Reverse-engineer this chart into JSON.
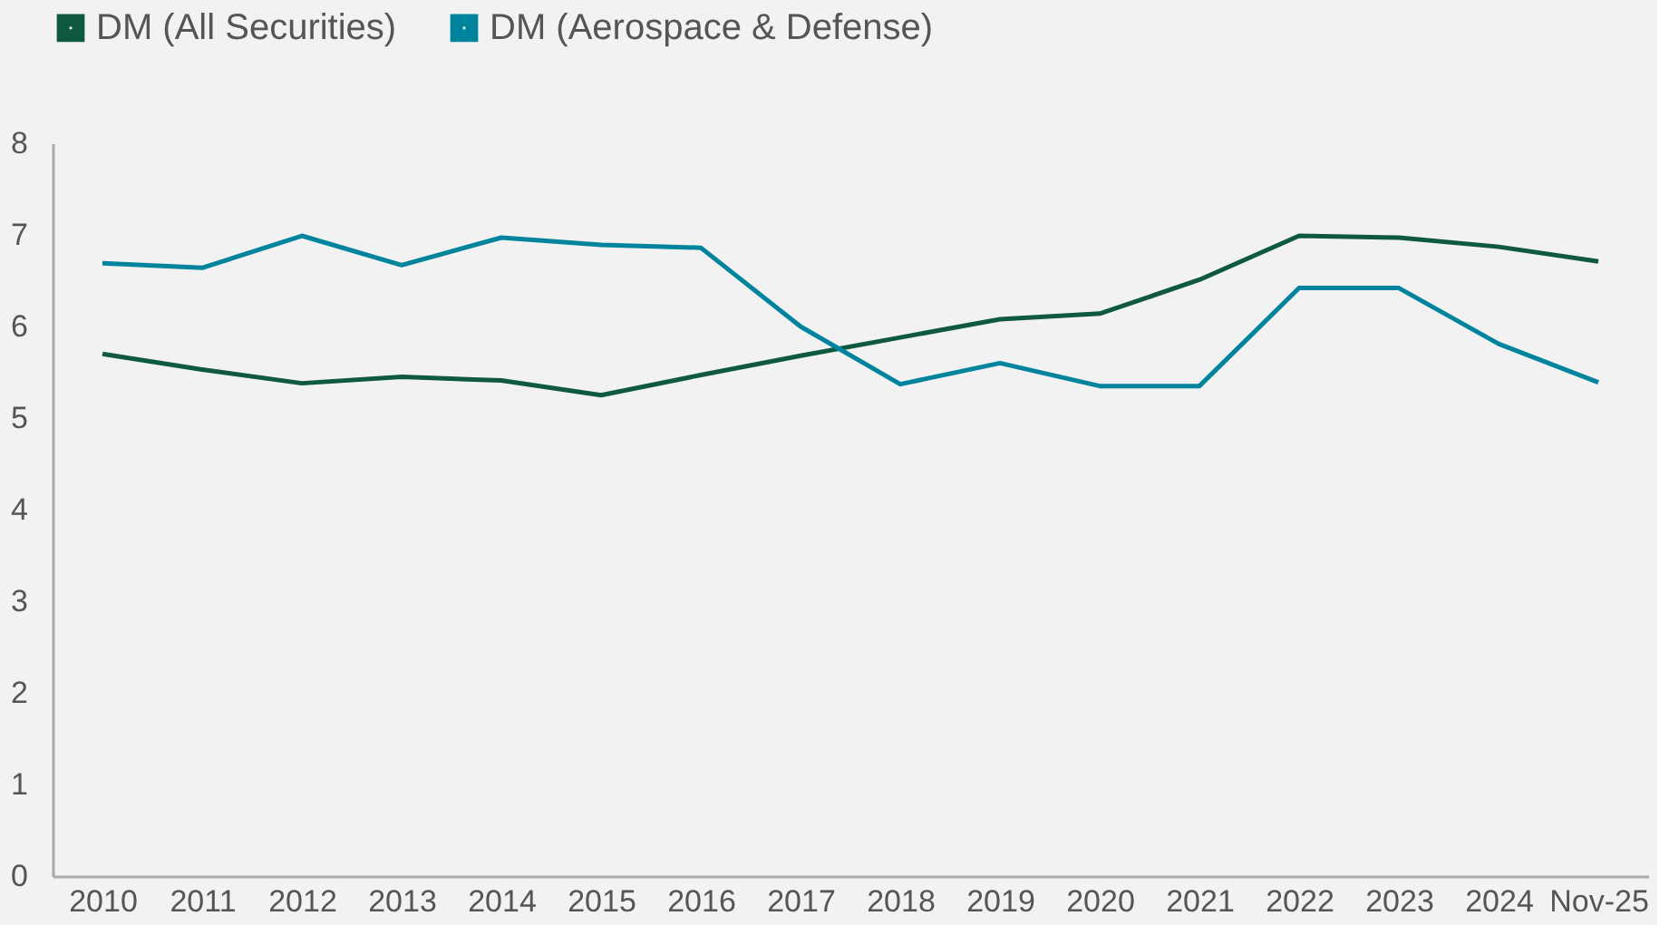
{
  "chart_data": {
    "type": "line",
    "categories": [
      "2010",
      "2011",
      "2012",
      "2013",
      "2014",
      "2015",
      "2016",
      "2017",
      "2018",
      "2019",
      "2020",
      "2021",
      "2022",
      "2023",
      "2024",
      "Nov-25"
    ],
    "series": [
      {
        "name": "DM (All Securities)",
        "color": "#0f5a3e",
        "values": [
          5.7,
          5.53,
          5.38,
          5.45,
          5.41,
          5.25,
          5.47,
          5.68,
          5.88,
          6.08,
          6.14,
          6.51,
          6.99,
          6.97,
          6.87,
          6.71
        ]
      },
      {
        "name": "DM (Aerospace & Defense)",
        "color": "#00849e",
        "values": [
          6.69,
          6.64,
          6.99,
          6.67,
          6.97,
          6.89,
          6.86,
          6.0,
          5.37,
          5.6,
          5.35,
          5.35,
          6.42,
          6.42,
          5.81,
          5.39
        ]
      }
    ],
    "ylim": [
      0,
      8
    ],
    "yticks": [
      0,
      1,
      2,
      3,
      4,
      5,
      6,
      7,
      8
    ],
    "grid": false,
    "legend": "top left",
    "marker": "none",
    "line_style": "solid"
  }
}
